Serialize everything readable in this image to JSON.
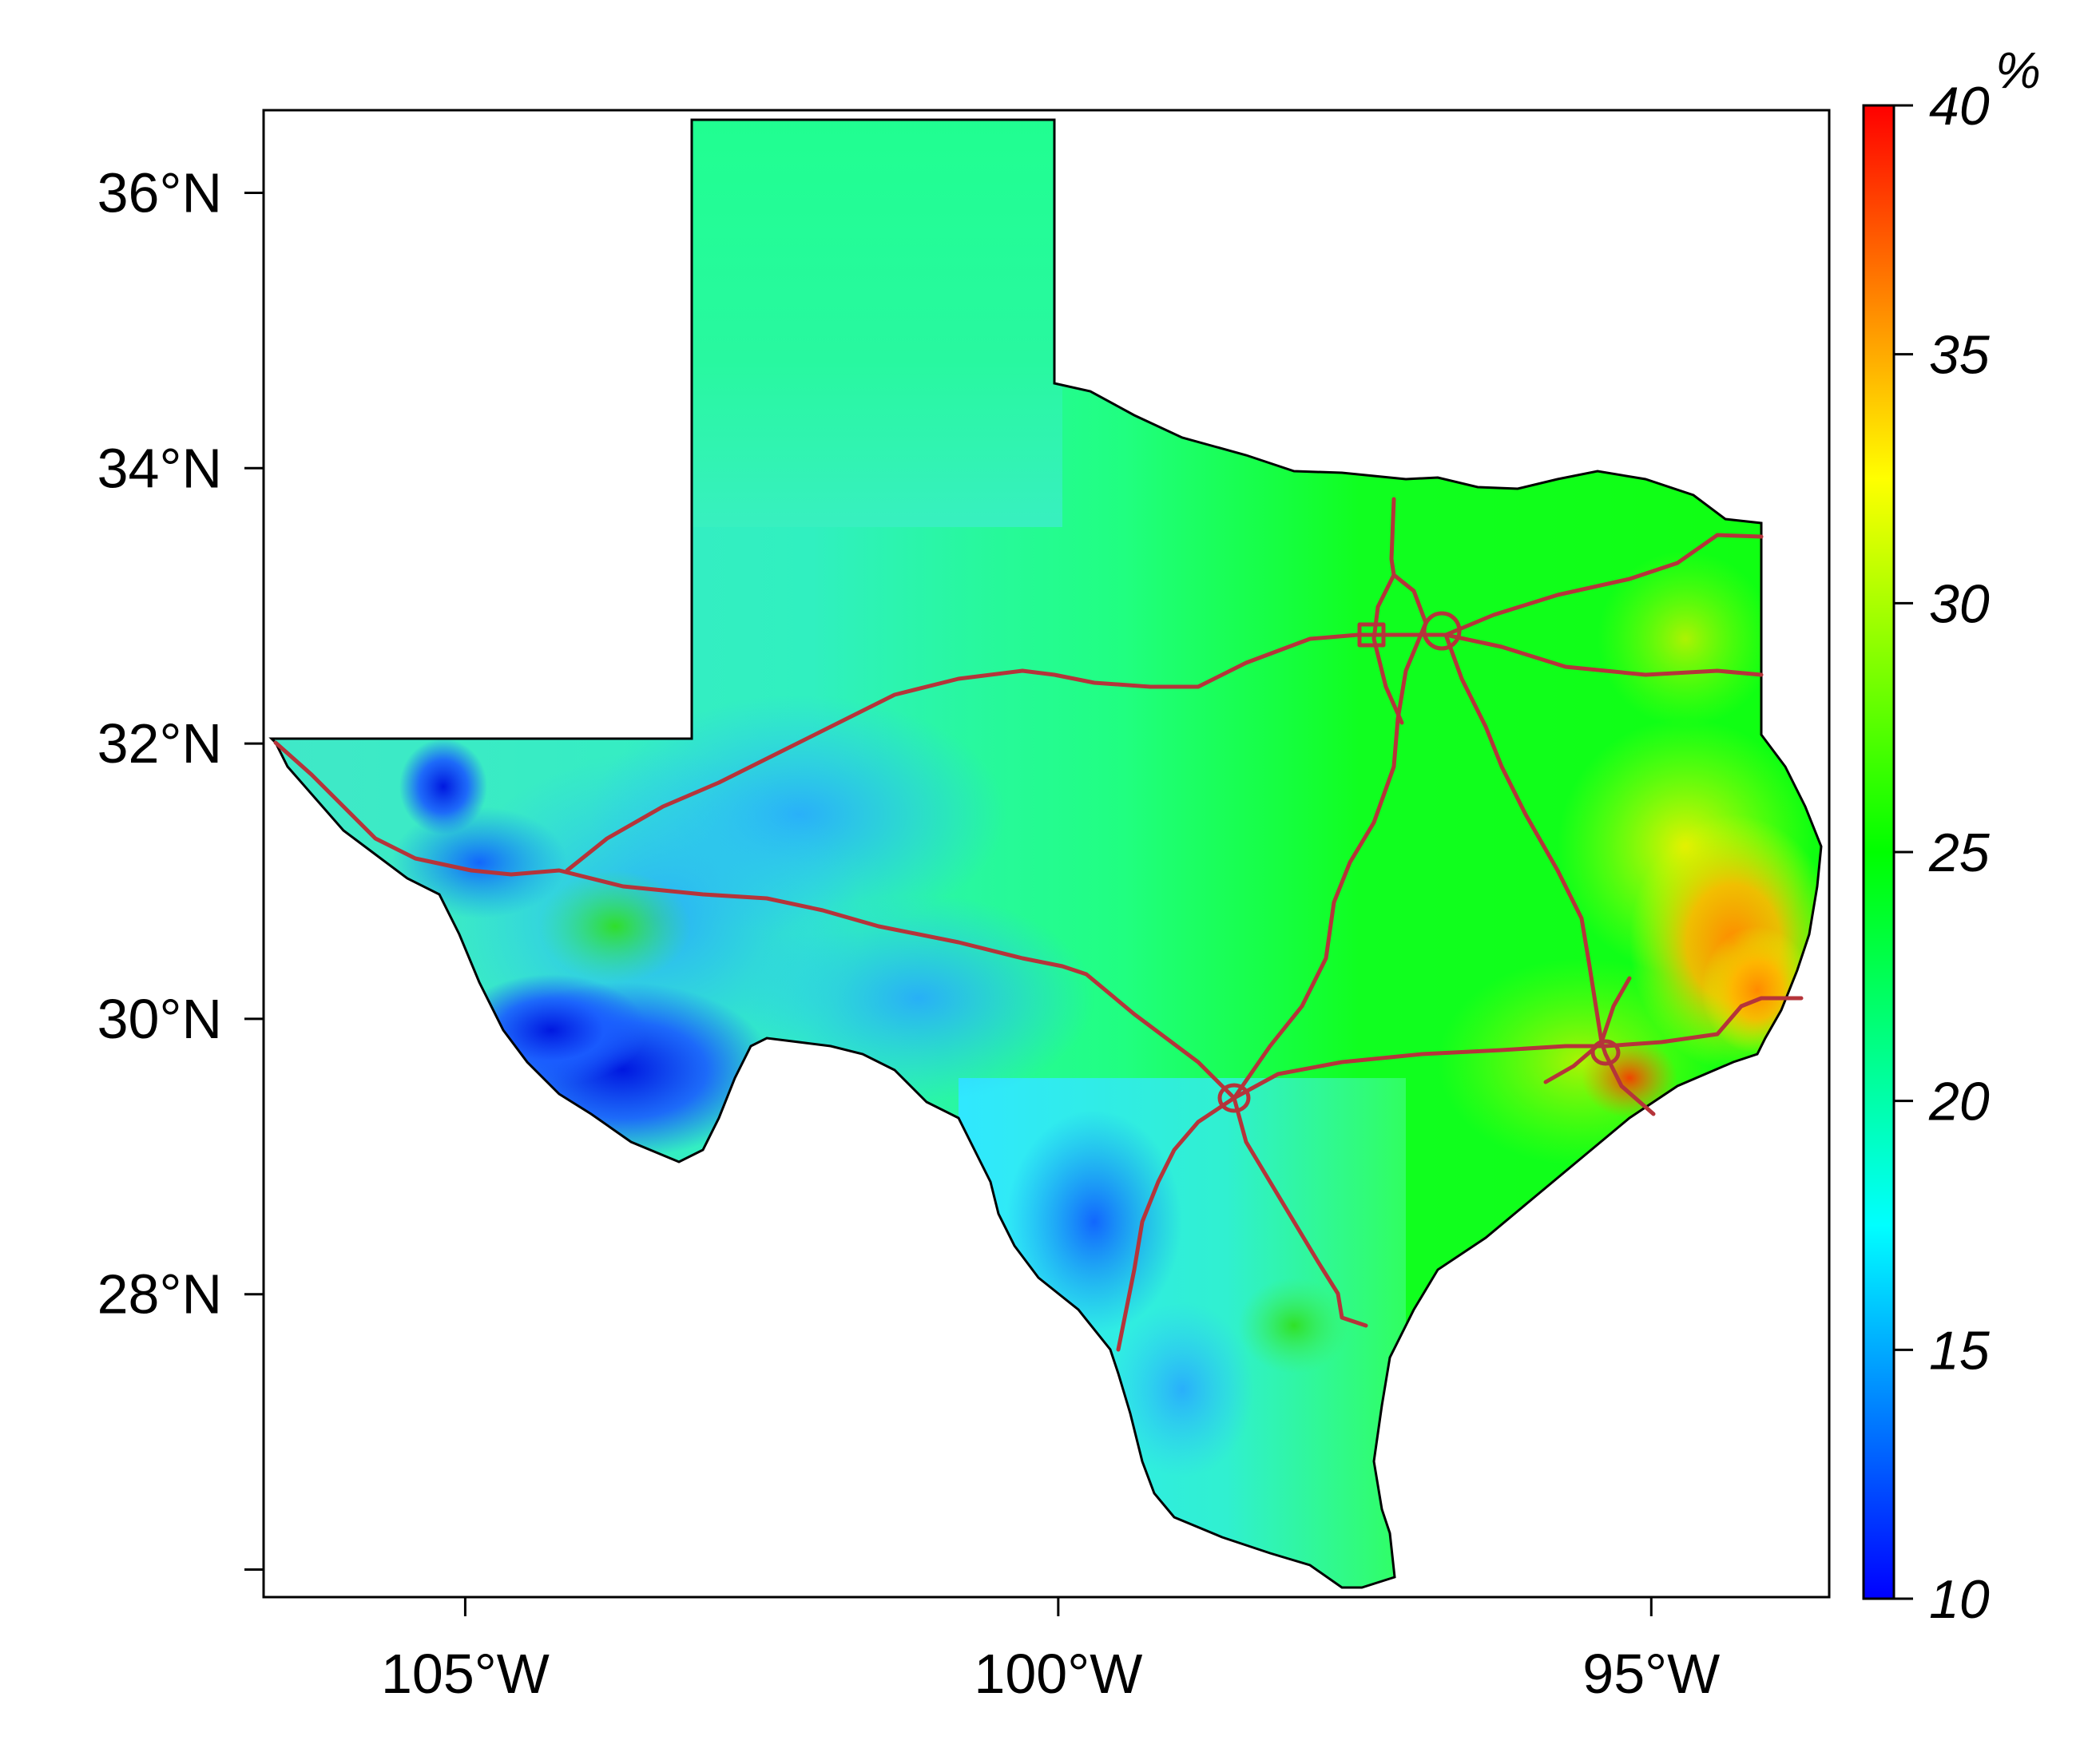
{
  "map": {
    "lat_ticks": [
      "36°N",
      "34°N",
      "32°N",
      "30°N",
      "28°N"
    ],
    "lon_ticks": [
      "105°W",
      "100°W",
      "95°W"
    ],
    "lat_values": [
      36,
      34,
      32,
      30,
      28
    ],
    "lon_values": [
      -105,
      -100,
      -95
    ],
    "extent": {
      "lon_min": -106.7,
      "lon_max": -93.5,
      "lat_min": 25.8,
      "lat_max": 36.6
    }
  },
  "legend": {
    "unit": "%",
    "ticks": [
      "10",
      "15",
      "20",
      "25",
      "30",
      "35",
      "40"
    ],
    "min": 10,
    "max": 40,
    "colors": [
      "#0000ff",
      "#0080ff",
      "#00ffff",
      "#00ff80",
      "#00ff00",
      "#80ff00",
      "#ffff00",
      "#ff8000",
      "#ff0000"
    ]
  },
  "colors": {
    "highway": "#b5343a",
    "border": "#000000",
    "low": "#1060ff",
    "mid_low": "#3fe8d0",
    "mid": "#2fff2a",
    "high": "#ff9a00"
  }
}
